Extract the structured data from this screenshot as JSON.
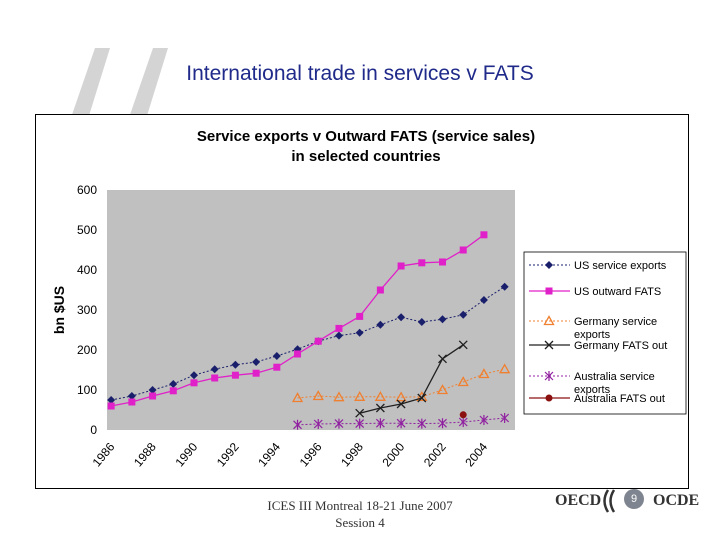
{
  "slide": {
    "title": "International trade in services v FATS",
    "footer_line1": "ICES III Montreal 18-21 June 2007",
    "footer_line2": "Session 4",
    "logo_left": "OECD",
    "logo_right": "OCDE",
    "page_number": "9"
  },
  "colors": {
    "title": "#1f2a8a",
    "plot_background": "#c0c0c0",
    "us_exports": "#1a1f6b",
    "us_fats": "#e020c8",
    "germany_exports": "#f08030",
    "germany_fats": "#202020",
    "australia_exports": "#9020a0",
    "australia_fats": "#8b1010"
  },
  "chart_data": {
    "type": "line",
    "title_line1": "Service exports v Outward FATS (service sales)",
    "title_line2": "in selected countries",
    "xlabel": "",
    "ylabel": "bn $US",
    "ylim": [
      0,
      600
    ],
    "yticks": [
      "0",
      "100",
      "200",
      "300",
      "400",
      "500",
      "600"
    ],
    "xlim": [
      1985.8,
      2005.5
    ],
    "xticks": [
      "1986",
      "1988",
      "1990",
      "1992",
      "1994",
      "1996",
      "1998",
      "2000",
      "2002",
      "2004"
    ],
    "legend_position": "right",
    "series": [
      {
        "name": "US service exports",
        "color_key": "us_exports",
        "dash": true,
        "marker": "diamond",
        "points": [
          [
            1986,
            75
          ],
          [
            1987,
            85
          ],
          [
            1988,
            100
          ],
          [
            1989,
            115
          ],
          [
            1990,
            137
          ],
          [
            1991,
            152
          ],
          [
            1992,
            163
          ],
          [
            1993,
            170
          ],
          [
            1994,
            185
          ],
          [
            1995,
            202
          ],
          [
            1996,
            222
          ],
          [
            1997,
            236
          ],
          [
            1998,
            243
          ],
          [
            1999,
            263
          ],
          [
            2000,
            282
          ],
          [
            2001,
            270
          ],
          [
            2002,
            277
          ],
          [
            2003,
            288
          ],
          [
            2004,
            325
          ],
          [
            2005,
            358
          ]
        ]
      },
      {
        "name": "US outward FATS",
        "color_key": "us_fats",
        "dash": false,
        "marker": "square",
        "points": [
          [
            1986,
            60
          ],
          [
            1987,
            70
          ],
          [
            1988,
            85
          ],
          [
            1989,
            98
          ],
          [
            1990,
            118
          ],
          [
            1991,
            130
          ],
          [
            1992,
            137
          ],
          [
            1993,
            142
          ],
          [
            1994,
            157
          ],
          [
            1995,
            190
          ],
          [
            1996,
            222
          ],
          [
            1997,
            254
          ],
          [
            1998,
            284
          ],
          [
            1999,
            350
          ],
          [
            2000,
            410
          ],
          [
            2001,
            418
          ],
          [
            2002,
            420
          ],
          [
            2003,
            450
          ],
          [
            2004,
            488
          ]
        ]
      },
      {
        "name": "Germany service exports",
        "color_key": "germany_exports",
        "dash": true,
        "marker": "triangle",
        "points": [
          [
            1995,
            80
          ],
          [
            1996,
            85
          ],
          [
            1997,
            82
          ],
          [
            1998,
            83
          ],
          [
            1999,
            83
          ],
          [
            2000,
            82
          ],
          [
            2001,
            83
          ],
          [
            2002,
            100
          ],
          [
            2003,
            120
          ],
          [
            2004,
            140
          ],
          [
            2005,
            152
          ]
        ]
      },
      {
        "name": "Germany FATS out",
        "color_key": "germany_fats",
        "dash": false,
        "marker": "x",
        "points": [
          [
            1998,
            42
          ],
          [
            1999,
            55
          ],
          [
            2000,
            65
          ],
          [
            2001,
            80
          ],
          [
            2002,
            178
          ],
          [
            2003,
            213
          ]
        ]
      },
      {
        "name": "Australia service exports",
        "color_key": "australia_exports",
        "dash": true,
        "marker": "star",
        "points": [
          [
            1995,
            13
          ],
          [
            1996,
            15
          ],
          [
            1997,
            16
          ],
          [
            1998,
            16
          ],
          [
            1999,
            17
          ],
          [
            2000,
            17
          ],
          [
            2001,
            16
          ],
          [
            2002,
            17
          ],
          [
            2003,
            20
          ],
          [
            2004,
            25
          ],
          [
            2005,
            30
          ]
        ]
      },
      {
        "name": "Australia FATS out",
        "color_key": "australia_fats",
        "dash": false,
        "marker": "circle",
        "points": [
          [
            2003,
            38
          ]
        ]
      }
    ]
  }
}
